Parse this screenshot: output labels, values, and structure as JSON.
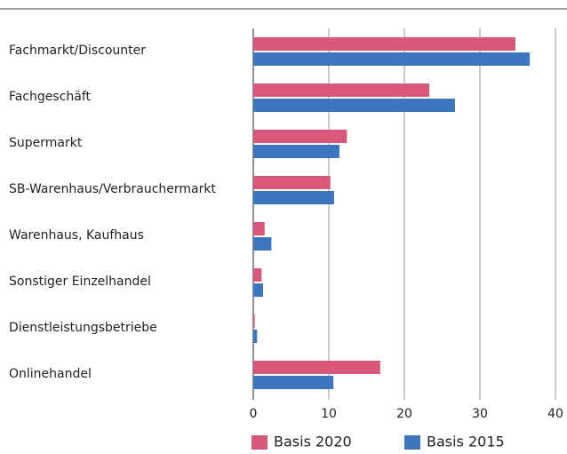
{
  "chart_data": {
    "type": "bar",
    "orientation": "horizontal",
    "categories": [
      "Fachmarkt/Discounter",
      "Fachgeschäft",
      "Supermarkt",
      "SB-Warenhaus/Verbrauchermarkt",
      "Warenhaus, Kaufhaus",
      "Sonstiger Einzelhandel",
      "Dienstleistungsbetriebe",
      "Onlinehandel"
    ],
    "series": [
      {
        "name": "Basis 2020",
        "color": "#d9577a",
        "values": [
          34.7,
          23.3,
          12.4,
          10.2,
          1.5,
          1.1,
          0.2,
          16.8
        ]
      },
      {
        "name": "Basis 2015",
        "color": "#3b76bf",
        "values": [
          36.6,
          26.7,
          11.4,
          10.7,
          2.4,
          1.3,
          0.5,
          10.6
        ]
      }
    ],
    "xlim": [
      0,
      40
    ],
    "xticks": [
      0,
      10,
      20,
      30,
      40
    ],
    "grid": true,
    "legend": "bottom"
  }
}
